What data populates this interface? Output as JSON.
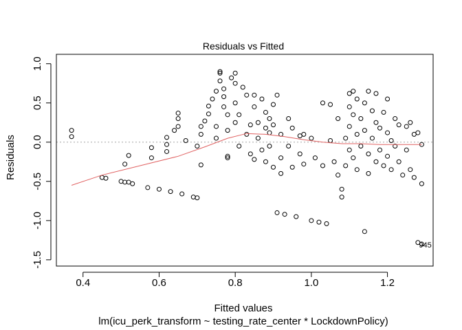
{
  "chart_data": {
    "type": "scatter",
    "title": "Residuals vs Fitted",
    "xlabel": "Fitted values",
    "subtitle": "lm(icu_perk_transform ~ testing_rate_center * LockdownPolicy)",
    "ylabel": "Residuals",
    "xlim": [
      0.33,
      1.32
    ],
    "ylim": [
      -1.58,
      1.12
    ],
    "x_ticks": [
      0.4,
      0.6,
      0.8,
      1.0,
      1.2
    ],
    "x_tick_labels": [
      "0.4",
      "0.6",
      "0.8",
      "1.0",
      "1.2"
    ],
    "y_ticks": [
      -1.5,
      -1.0,
      -0.5,
      0.0,
      0.5,
      1.0
    ],
    "y_tick_labels": [
      "-1.5",
      "-1.0",
      "-0.5",
      "0.0",
      "0.5",
      "1.0"
    ],
    "reference_line": {
      "y": 0,
      "style": "dotted",
      "color": "#a0a0a0"
    },
    "smooth": {
      "color": "#e06060",
      "x": [
        0.37,
        0.45,
        0.55,
        0.65,
        0.72,
        0.78,
        0.83,
        0.88,
        0.93,
        0.98,
        1.03,
        1.08,
        1.13,
        1.18,
        1.23,
        1.29
      ],
      "y": [
        -0.55,
        -0.42,
        -0.3,
        -0.18,
        -0.06,
        0.05,
        0.11,
        0.1,
        0.07,
        0.03,
        0.0,
        -0.02,
        -0.02,
        -0.03,
        -0.03,
        -0.03
      ]
    },
    "points": [
      [
        0.37,
        0.15
      ],
      [
        0.37,
        0.07
      ],
      [
        0.45,
        -0.45
      ],
      [
        0.46,
        -0.46
      ],
      [
        0.5,
        -0.5
      ],
      [
        0.51,
        -0.51
      ],
      [
        0.52,
        -0.51
      ],
      [
        0.53,
        -0.53
      ],
      [
        0.51,
        -0.28
      ],
      [
        0.52,
        -0.17
      ],
      [
        0.57,
        -0.58
      ],
      [
        0.58,
        -0.2
      ],
      [
        0.58,
        -0.07
      ],
      [
        0.6,
        -0.6
      ],
      [
        0.62,
        -0.12
      ],
      [
        0.62,
        -0.03
      ],
      [
        0.62,
        0.06
      ],
      [
        0.63,
        -0.63
      ],
      [
        0.64,
        0.15
      ],
      [
        0.65,
        0.2
      ],
      [
        0.65,
        0.3
      ],
      [
        0.65,
        0.37
      ],
      [
        0.66,
        -0.66
      ],
      [
        0.67,
        0.02
      ],
      [
        0.69,
        -0.7
      ],
      [
        0.7,
        -0.71
      ],
      [
        0.7,
        -0.05
      ],
      [
        0.71,
        -0.29
      ],
      [
        0.71,
        0.1
      ],
      [
        0.71,
        0.2
      ],
      [
        0.72,
        0.27
      ],
      [
        0.73,
        0.36
      ],
      [
        0.73,
        0.46
      ],
      [
        0.74,
        0.55
      ],
      [
        0.75,
        0.65
      ],
      [
        0.75,
        0.2
      ],
      [
        0.75,
        0.05
      ],
      [
        0.76,
        0.78
      ],
      [
        0.76,
        0.88
      ],
      [
        0.76,
        0.9
      ],
      [
        0.77,
        0.68
      ],
      [
        0.77,
        0.58
      ],
      [
        0.77,
        0.45
      ],
      [
        0.78,
        0.35
      ],
      [
        0.78,
        0.15
      ],
      [
        0.78,
        -0.18
      ],
      [
        0.78,
        -0.2
      ],
      [
        0.79,
        0.82
      ],
      [
        0.8,
        0.88
      ],
      [
        0.8,
        0.75
      ],
      [
        0.8,
        0.5
      ],
      [
        0.8,
        0.25
      ],
      [
        0.81,
        0.35
      ],
      [
        0.81,
        -0.05
      ],
      [
        0.82,
        0.7
      ],
      [
        0.83,
        0.6
      ],
      [
        0.83,
        0.1
      ],
      [
        0.84,
        0.22
      ],
      [
        0.84,
        -0.15
      ],
      [
        0.85,
        0.45
      ],
      [
        0.85,
        0.6
      ],
      [
        0.85,
        -0.22
      ],
      [
        0.86,
        0.25
      ],
      [
        0.86,
        0.05
      ],
      [
        0.87,
        0.55
      ],
      [
        0.87,
        -0.1
      ],
      [
        0.88,
        0.38
      ],
      [
        0.88,
        0.18
      ],
      [
        0.88,
        -0.25
      ],
      [
        0.89,
        0.3
      ],
      [
        0.89,
        0.12
      ],
      [
        0.89,
        -0.05
      ],
      [
        0.9,
        0.48
      ],
      [
        0.9,
        0.22
      ],
      [
        0.9,
        -0.32
      ],
      [
        0.91,
        0.6
      ],
      [
        0.91,
        -0.9
      ],
      [
        0.92,
        0.1
      ],
      [
        0.92,
        -0.2
      ],
      [
        0.92,
        -0.4
      ],
      [
        0.93,
        -0.92
      ],
      [
        0.94,
        0.3
      ],
      [
        0.94,
        -0.05
      ],
      [
        0.95,
        0.18
      ],
      [
        0.95,
        -0.32
      ],
      [
        0.96,
        -0.95
      ],
      [
        0.97,
        0.08
      ],
      [
        0.97,
        -0.15
      ],
      [
        0.98,
        0.1
      ],
      [
        0.98,
        -0.28
      ],
      [
        1.0,
        -1.0
      ],
      [
        1.0,
        0.05
      ],
      [
        1.01,
        -0.2
      ],
      [
        1.02,
        -1.02
      ],
      [
        1.03,
        0.5
      ],
      [
        1.03,
        -0.3
      ],
      [
        1.04,
        -1.04
      ],
      [
        1.05,
        0.48
      ],
      [
        1.05,
        0.02
      ],
      [
        1.06,
        -0.25
      ],
      [
        1.07,
        0.3
      ],
      [
        1.07,
        -0.42
      ],
      [
        1.08,
        -0.6
      ],
      [
        1.08,
        -0.7
      ],
      [
        1.09,
        0.05
      ],
      [
        1.09,
        -0.3
      ],
      [
        1.1,
        0.62
      ],
      [
        1.1,
        0.45
      ],
      [
        1.1,
        0.2
      ],
      [
        1.1,
        -0.1
      ],
      [
        1.11,
        0.65
      ],
      [
        1.11,
        0.35
      ],
      [
        1.11,
        -0.2
      ],
      [
        1.12,
        0.55
      ],
      [
        1.12,
        0.1
      ],
      [
        1.12,
        -0.35
      ],
      [
        1.13,
        0.3
      ],
      [
        1.13,
        -0.05
      ],
      [
        1.14,
        0.5
      ],
      [
        1.14,
        -1.14
      ],
      [
        1.14,
        0.15
      ],
      [
        1.15,
        0.65
      ],
      [
        1.15,
        -0.15
      ],
      [
        1.15,
        -0.4
      ],
      [
        1.16,
        0.4
      ],
      [
        1.16,
        0.05
      ],
      [
        1.17,
        0.62
      ],
      [
        1.17,
        0.25
      ],
      [
        1.17,
        -0.25
      ],
      [
        1.18,
        0.18
      ],
      [
        1.18,
        -0.1
      ],
      [
        1.19,
        0.38
      ],
      [
        1.19,
        -0.3
      ],
      [
        1.2,
        0.55
      ],
      [
        1.2,
        0.12
      ],
      [
        1.2,
        -0.18
      ],
      [
        1.21,
        0.02
      ],
      [
        1.21,
        -0.35
      ],
      [
        1.22,
        0.3
      ],
      [
        1.22,
        -0.05
      ],
      [
        1.23,
        0.22
      ],
      [
        1.23,
        -0.25
      ],
      [
        1.24,
        -0.42
      ],
      [
        1.25,
        0.2
      ],
      [
        1.25,
        -0.1
      ],
      [
        1.26,
        0.25
      ],
      [
        1.26,
        -0.35
      ],
      [
        1.27,
        0.1
      ],
      [
        1.27,
        -0.45
      ],
      [
        1.28,
        -1.28
      ],
      [
        1.28,
        0.12
      ],
      [
        1.29,
        -1.3
      ],
      [
        1.29,
        -0.03
      ],
      [
        1.29,
        -0.53
      ]
    ],
    "point_labels": [
      {
        "x": 1.29,
        "y": -1.31,
        "text": "945"
      }
    ]
  }
}
